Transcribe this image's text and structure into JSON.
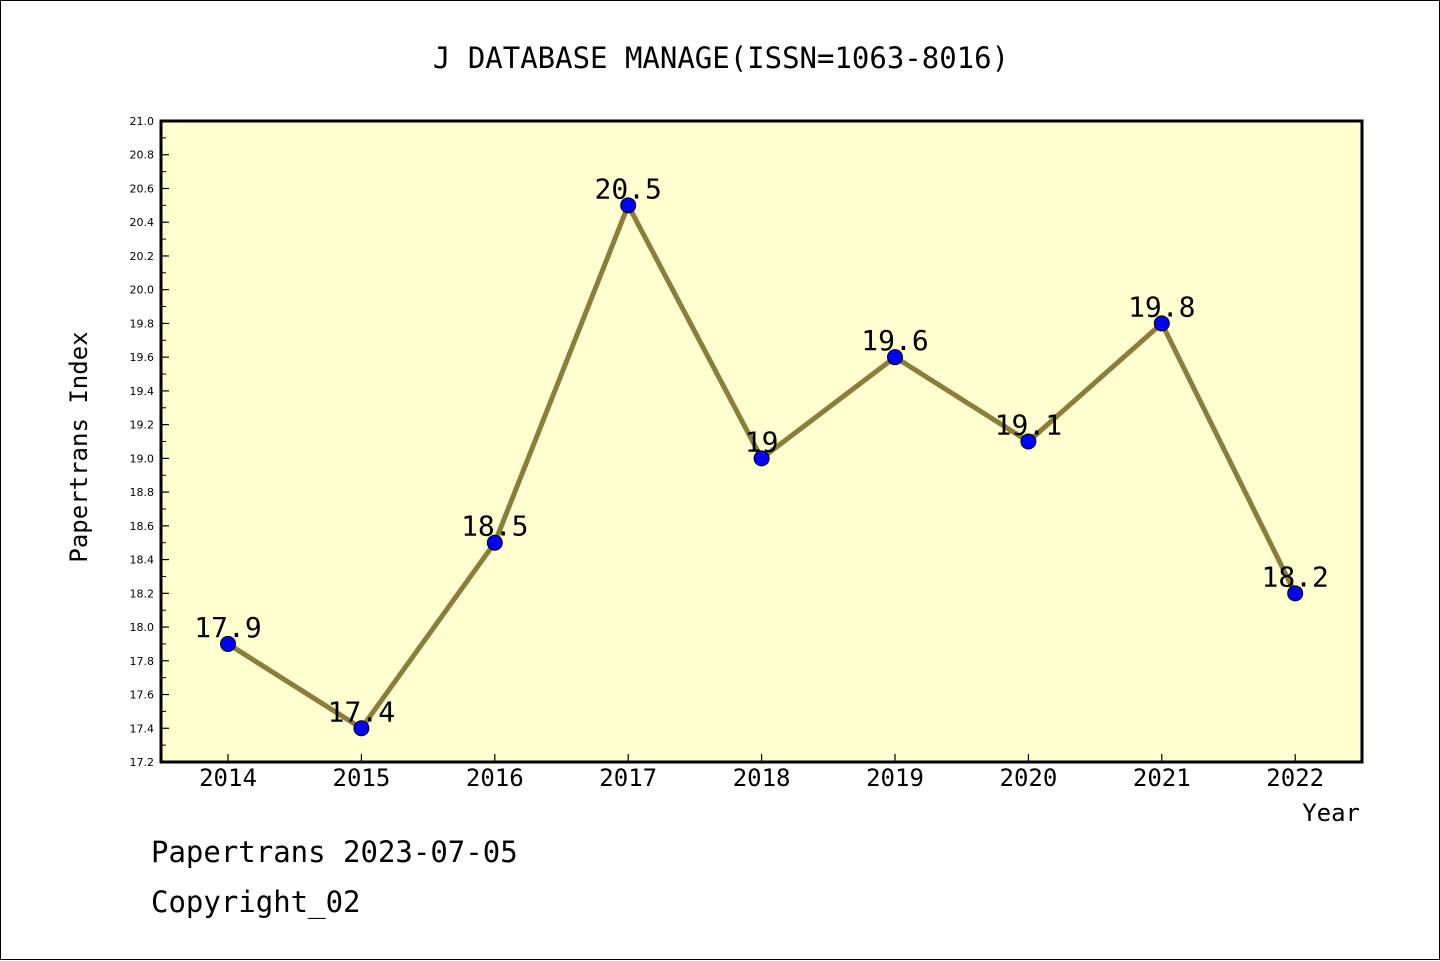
{
  "chart_data": {
    "type": "line",
    "title": "J DATABASE MANAGE(ISSN=1063-8016)",
    "xlabel": "Year",
    "ylabel": "Papertrans Index",
    "categories": [
      "2014",
      "2015",
      "2016",
      "2017",
      "2018",
      "2019",
      "2020",
      "2021",
      "2022"
    ],
    "series": [
      {
        "values": [
          17.9,
          17.4,
          18.5,
          20.5,
          19.0,
          19.6,
          19.1,
          19.8,
          18.2
        ]
      }
    ],
    "data_labels": [
      "17.9",
      "17.4",
      "18.5",
      "20.5",
      "19",
      "19.6",
      "19.1",
      "19.8",
      "18.2"
    ],
    "ylim": [
      17.2,
      21.0
    ],
    "ytick_labels": [
      "17.2",
      "17.4",
      "17.6",
      "17.8",
      "18.0",
      "18.2",
      "18.4",
      "18.6",
      "18.8",
      "19.0",
      "19.2",
      "19.4",
      "19.6",
      "19.8",
      "20.0",
      "20.2",
      "20.4",
      "20.6",
      "20.8",
      "21.0"
    ],
    "grid": false,
    "colors": {
      "plot_background": "#ffffd0",
      "line": "#8b7d3a",
      "marker": "#0000ff"
    }
  },
  "footer": {
    "line1": "Papertrans 2023-07-05",
    "line2": "Copyright_02"
  }
}
